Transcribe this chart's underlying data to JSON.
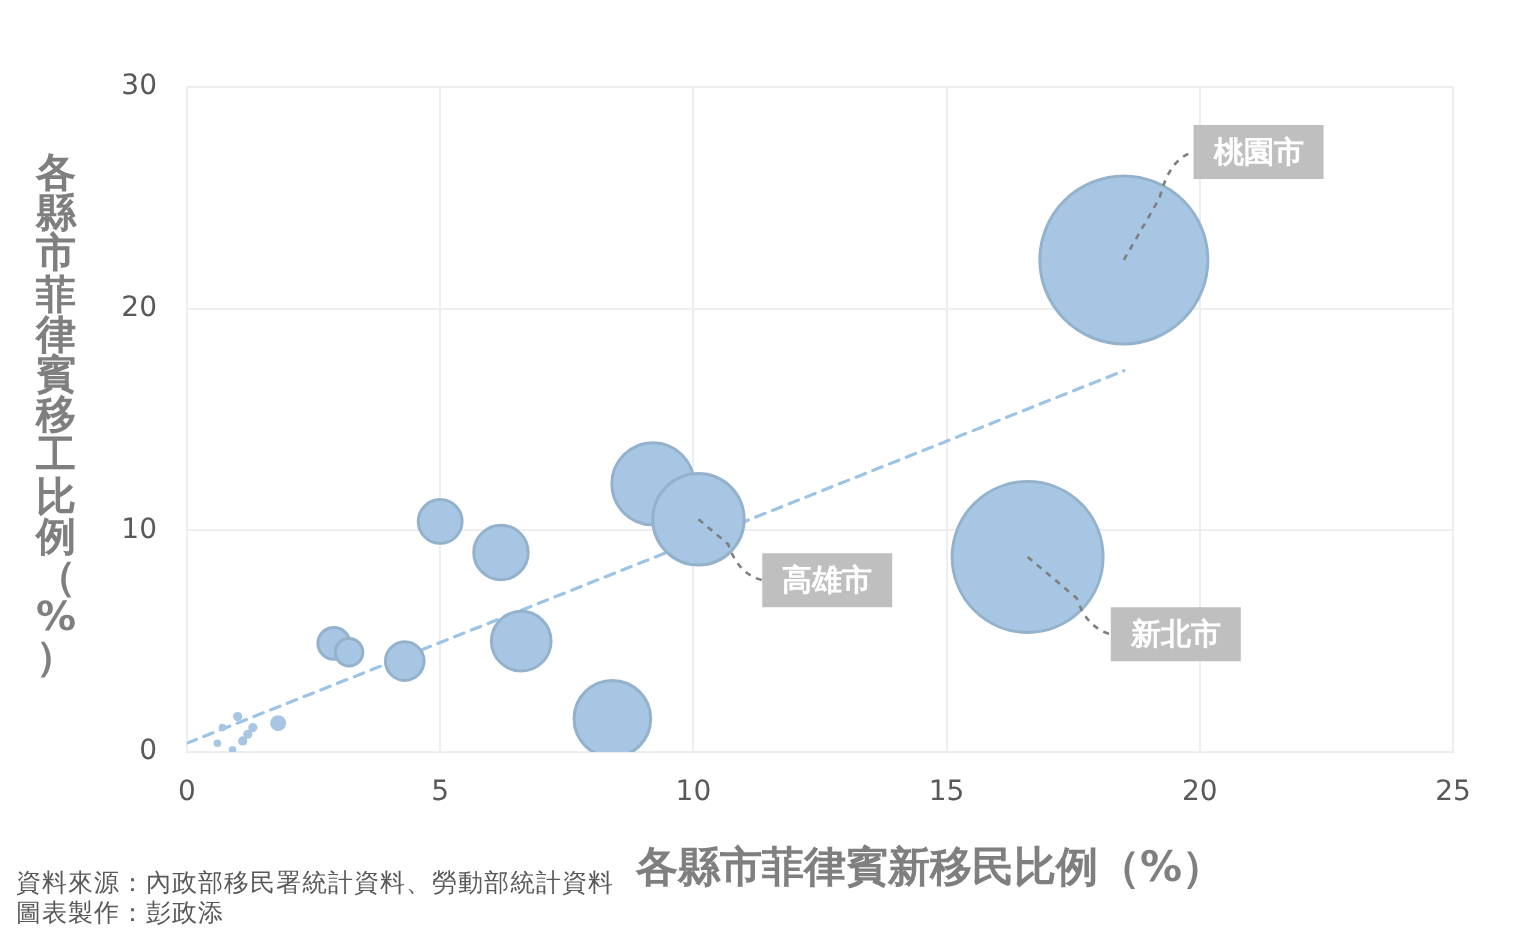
{
  "chart_data": {
    "type": "bubble",
    "xlabel": "各縣市菲律賓新移民比例（%）",
    "ylabel": "各縣市菲律賓移工比例（%）",
    "xlim": [
      0,
      25
    ],
    "xticks": [
      0,
      5,
      10,
      15,
      20,
      25
    ],
    "ylim": [
      0,
      30
    ],
    "yticks": [
      0,
      10,
      20,
      30
    ],
    "grid": true,
    "legend": false,
    "series": [
      {
        "type": "bubble",
        "color": "#a6c6e3",
        "x": [
          0.6,
          0.7,
          0.9,
          1.0,
          1.1,
          1.2,
          1.3,
          1.8,
          2.9,
          3.2,
          4.3,
          5.0,
          6.2,
          6.6,
          8.4,
          9.2,
          10.1,
          16.6,
          18.5
        ],
        "values": [
          0.4,
          1.1,
          0.1,
          1.6,
          0.5,
          0.8,
          1.1,
          1.3,
          4.9,
          4.5,
          4.1,
          10.4,
          9.0,
          5.0,
          1.5,
          12.1,
          10.5,
          8.8,
          22.2
        ],
        "sizes": [
          0.002,
          0.002,
          0.002,
          0.003,
          0.003,
          0.003,
          0.003,
          0.009,
          0.036,
          0.027,
          0.053,
          0.068,
          0.105,
          0.126,
          0.208,
          0.239,
          0.296,
          0.807,
          1
        ]
      },
      {
        "type": "line",
        "color": "#9dc3e6",
        "x": [
          0,
          18.5
        ],
        "values": [
          0.4,
          17.2
        ],
        "line_style": "dashed",
        "marker": "none"
      }
    ],
    "annotations": [
      {
        "text": "桃園市",
        "x": 18.5,
        "y": 22.2
      },
      {
        "text": "高雄市",
        "x": 10.1,
        "y": 10.5
      },
      {
        "text": "新北市",
        "x": 16.6,
        "y": 8.8
      },
      "資料來源：內政部移民署統計資料、勞動部統計資料",
      "圖表製作：彭政添"
    ]
  }
}
